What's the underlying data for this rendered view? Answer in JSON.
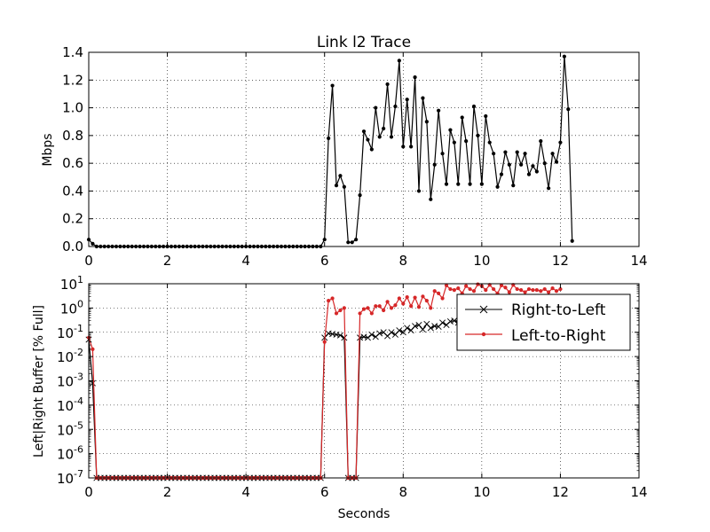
{
  "chart_data": [
    {
      "type": "line",
      "title": "Link l2 Trace",
      "xlabel": "",
      "ylabel": "Mbps",
      "xlim": [
        0,
        14
      ],
      "ylim": [
        0,
        1.4
      ],
      "xticks": [
        0,
        2,
        4,
        6,
        8,
        10,
        12,
        14
      ],
      "xtick_labels": [
        "0",
        "2",
        "4",
        "6",
        "8",
        "10",
        "12",
        "14"
      ],
      "yticks": [
        0,
        0.2,
        0.4,
        0.6,
        0.8,
        1.0,
        1.2,
        1.4
      ],
      "ytick_labels": [
        "0.0",
        "0.2",
        "0.4",
        "0.6",
        "0.8",
        "1.0",
        "1.2",
        "1.4"
      ],
      "grid": true,
      "series": [
        {
          "color": "#000000",
          "marker": "dot",
          "x": [
            0,
            0.1,
            0.2,
            0.3,
            0.4,
            0.5,
            0.6,
            0.7,
            0.8,
            0.9,
            1.0,
            1.1,
            1.2,
            1.3,
            1.4,
            1.5,
            1.6,
            1.7,
            1.8,
            1.9,
            2.0,
            2.1,
            2.2,
            2.3,
            2.4,
            2.5,
            2.6,
            2.7,
            2.8,
            2.9,
            3.0,
            3.1,
            3.2,
            3.3,
            3.4,
            3.5,
            3.6,
            3.7,
            3.8,
            3.9,
            4.0,
            4.1,
            4.2,
            4.3,
            4.4,
            4.5,
            4.6,
            4.7,
            4.8,
            4.9,
            5.0,
            5.1,
            5.2,
            5.3,
            5.4,
            5.5,
            5.6,
            5.7,
            5.8,
            5.9,
            6.0,
            6.1,
            6.2,
            6.3,
            6.4,
            6.5,
            6.6,
            6.7,
            6.8,
            6.9,
            7.0,
            7.1,
            7.2,
            7.3,
            7.4,
            7.5,
            7.6,
            7.7,
            7.8,
            7.9,
            8.0,
            8.1,
            8.2,
            8.3,
            8.4,
            8.5,
            8.6,
            8.7,
            8.8,
            8.9,
            9.0,
            9.1,
            9.2,
            9.3,
            9.4,
            9.5,
            9.6,
            9.7,
            9.8,
            9.9,
            10.0,
            10.1,
            10.2,
            10.3,
            10.4,
            10.5,
            10.6,
            10.7,
            10.8,
            10.9,
            11.0,
            11.1,
            11.2,
            11.3,
            11.4,
            11.5,
            11.6,
            11.7,
            11.8,
            11.9,
            12.0,
            12.1,
            12.2,
            12.3
          ],
          "y": [
            0.05,
            0.02,
            0,
            0,
            0,
            0,
            0,
            0,
            0,
            0,
            0,
            0,
            0,
            0,
            0,
            0,
            0,
            0,
            0,
            0,
            0,
            0,
            0,
            0,
            0,
            0,
            0,
            0,
            0,
            0,
            0,
            0,
            0,
            0,
            0,
            0,
            0,
            0,
            0,
            0,
            0,
            0,
            0,
            0,
            0,
            0,
            0,
            0,
            0,
            0,
            0,
            0,
            0,
            0,
            0,
            0,
            0,
            0,
            0,
            0,
            0.05,
            0.78,
            1.16,
            0.44,
            0.51,
            0.43,
            0.03,
            0.03,
            0.05,
            0.37,
            0.83,
            0.77,
            0.7,
            1.0,
            0.79,
            0.85,
            1.17,
            0.79,
            1.01,
            1.34,
            0.72,
            1.06,
            0.72,
            1.22,
            0.4,
            1.07,
            0.9,
            0.34,
            0.59,
            0.98,
            0.67,
            0.45,
            0.84,
            0.75,
            0.45,
            0.93,
            0.76,
            0.45,
            1.01,
            0.8,
            0.45,
            0.94,
            0.75,
            0.67,
            0.43,
            0.52,
            0.68,
            0.59,
            0.44,
            0.68,
            0.59,
            0.67,
            0.52,
            0.58,
            0.54,
            0.76,
            0.6,
            0.42,
            0.67,
            0.61,
            0.75,
            1.37,
            0.99,
            0.04
          ]
        }
      ]
    },
    {
      "type": "line",
      "title": "",
      "xlabel": "Seconds",
      "ylabel": "Left|Right Buffer [% Full]",
      "xlim": [
        0,
        14
      ],
      "ylim": [
        1e-07,
        10
      ],
      "yscale": "log",
      "xticks": [
        0,
        2,
        4,
        6,
        8,
        10,
        12,
        14
      ],
      "xtick_labels": [
        "0",
        "2",
        "4",
        "6",
        "8",
        "10",
        "12",
        "14"
      ],
      "ytick_exponents": [
        -7,
        -6,
        -5,
        -4,
        -3,
        -2,
        -1,
        0,
        1
      ],
      "ytick_base": "10",
      "grid": true,
      "legend": {
        "position": "upper-right",
        "entries": [
          "Right-to-Left",
          "Left-to-Right"
        ]
      },
      "series": [
        {
          "name": "Right-to-Left",
          "color": "#000000",
          "marker": "x",
          "x": [
            0,
            0.1,
            0.2,
            0.3,
            0.4,
            0.5,
            0.6,
            0.7,
            0.8,
            0.9,
            1.0,
            1.1,
            1.2,
            1.3,
            1.4,
            1.5,
            1.6,
            1.7,
            1.8,
            1.9,
            2.0,
            2.1,
            2.2,
            2.3,
            2.4,
            2.5,
            2.6,
            2.7,
            2.8,
            2.9,
            3.0,
            3.1,
            3.2,
            3.3,
            3.4,
            3.5,
            3.6,
            3.7,
            3.8,
            3.9,
            4.0,
            4.1,
            4.2,
            4.3,
            4.4,
            4.5,
            4.6,
            4.7,
            4.8,
            4.9,
            5.0,
            5.1,
            5.2,
            5.3,
            5.4,
            5.5,
            5.6,
            5.7,
            5.8,
            5.9,
            6.0,
            6.1,
            6.2,
            6.3,
            6.4,
            6.5,
            6.6,
            6.7,
            6.8,
            6.9,
            7.0,
            7.1,
            7.2,
            7.3,
            7.4,
            7.5,
            7.6,
            7.7,
            7.8,
            7.9,
            8.0,
            8.1,
            8.2,
            8.3,
            8.4,
            8.5,
            8.6,
            8.7,
            8.8,
            8.9,
            9.0,
            9.1,
            9.2,
            9.3,
            9.4,
            9.5,
            9.6,
            9.7,
            9.8,
            9.9,
            10.0
          ],
          "y": [
            0.05,
            0.0008,
            1e-07,
            1e-07,
            1e-07,
            1e-07,
            1e-07,
            1e-07,
            1e-07,
            1e-07,
            1e-07,
            1e-07,
            1e-07,
            1e-07,
            1e-07,
            1e-07,
            1e-07,
            1e-07,
            1e-07,
            1e-07,
            1e-07,
            1e-07,
            1e-07,
            1e-07,
            1e-07,
            1e-07,
            1e-07,
            1e-07,
            1e-07,
            1e-07,
            1e-07,
            1e-07,
            1e-07,
            1e-07,
            1e-07,
            1e-07,
            1e-07,
            1e-07,
            1e-07,
            1e-07,
            1e-07,
            1e-07,
            1e-07,
            1e-07,
            1e-07,
            1e-07,
            1e-07,
            1e-07,
            1e-07,
            1e-07,
            1e-07,
            1e-07,
            1e-07,
            1e-07,
            1e-07,
            1e-07,
            1e-07,
            1e-07,
            1e-07,
            1e-07,
            0.06,
            0.09,
            0.085,
            0.08,
            0.075,
            0.06,
            1e-07,
            1e-07,
            1e-07,
            0.06,
            0.065,
            0.06,
            0.08,
            0.065,
            0.09,
            0.1,
            0.07,
            0.1,
            0.08,
            0.12,
            0.1,
            0.15,
            0.12,
            0.18,
            0.2,
            0.13,
            0.22,
            0.15,
            0.18,
            0.17,
            0.25,
            0.2,
            0.28,
            0.3,
            0.25,
            0.27,
            0.3,
            0.32,
            0.3,
            0.35,
            0.4
          ]
        },
        {
          "name": "Left-to-Right",
          "color": "#d62728",
          "marker": "dot",
          "x": [
            0,
            0.1,
            0.2,
            0.3,
            0.4,
            0.5,
            0.6,
            0.7,
            0.8,
            0.9,
            1.0,
            1.1,
            1.2,
            1.3,
            1.4,
            1.5,
            1.6,
            1.7,
            1.8,
            1.9,
            2.0,
            2.1,
            2.2,
            2.3,
            2.4,
            2.5,
            2.6,
            2.7,
            2.8,
            2.9,
            3.0,
            3.1,
            3.2,
            3.3,
            3.4,
            3.5,
            3.6,
            3.7,
            3.8,
            3.9,
            4.0,
            4.1,
            4.2,
            4.3,
            4.4,
            4.5,
            4.6,
            4.7,
            4.8,
            4.9,
            5.0,
            5.1,
            5.2,
            5.3,
            5.4,
            5.5,
            5.6,
            5.7,
            5.8,
            5.9,
            6.0,
            6.1,
            6.2,
            6.3,
            6.4,
            6.5,
            6.6,
            6.7,
            6.8,
            6.9,
            7.0,
            7.1,
            7.2,
            7.3,
            7.4,
            7.5,
            7.6,
            7.7,
            7.8,
            7.9,
            8.0,
            8.1,
            8.2,
            8.3,
            8.4,
            8.5,
            8.6,
            8.7,
            8.8,
            8.9,
            9.0,
            9.1,
            9.2,
            9.3,
            9.4,
            9.5,
            9.6,
            9.7,
            9.8,
            9.9,
            10.0,
            10.1,
            10.2,
            10.3,
            10.4,
            10.5,
            10.6,
            10.7,
            10.8,
            10.9,
            11.0,
            11.1,
            11.2,
            11.3,
            11.4,
            11.5,
            11.6,
            11.7,
            11.8,
            11.9,
            12.0
          ],
          "y": [
            0.06,
            0.02,
            1e-07,
            1e-07,
            1e-07,
            1e-07,
            1e-07,
            1e-07,
            1e-07,
            1e-07,
            1e-07,
            1e-07,
            1e-07,
            1e-07,
            1e-07,
            1e-07,
            1e-07,
            1e-07,
            1e-07,
            1e-07,
            1e-07,
            1e-07,
            1e-07,
            1e-07,
            1e-07,
            1e-07,
            1e-07,
            1e-07,
            1e-07,
            1e-07,
            1e-07,
            1e-07,
            1e-07,
            1e-07,
            1e-07,
            1e-07,
            1e-07,
            1e-07,
            1e-07,
            1e-07,
            1e-07,
            1e-07,
            1e-07,
            1e-07,
            1e-07,
            1e-07,
            1e-07,
            1e-07,
            1e-07,
            1e-07,
            1e-07,
            1e-07,
            1e-07,
            1e-07,
            1e-07,
            1e-07,
            1e-07,
            1e-07,
            1e-07,
            1e-07,
            0.04,
            2.0,
            2.5,
            0.6,
            0.8,
            1.0,
            1e-07,
            1e-07,
            1e-07,
            0.6,
            0.9,
            1.0,
            0.6,
            1.2,
            1.2,
            0.8,
            1.8,
            1.0,
            1.3,
            2.5,
            1.5,
            2.8,
            1.2,
            2.7,
            1.1,
            3.0,
            2.0,
            1.0,
            5.0,
            4.0,
            2.5,
            8.5,
            6.0,
            5.5,
            6.5,
            4.0,
            8.0,
            6.0,
            5.0,
            9.5,
            8.0,
            5.5,
            9.0,
            6.0,
            4.0,
            8.5,
            7.0,
            4.5,
            9.0,
            6.0,
            5.5,
            4.5,
            6.0,
            5.5,
            5.5,
            5.0,
            6.0,
            4.5,
            6.5,
            5.0,
            6.0
          ]
        }
      ]
    }
  ]
}
